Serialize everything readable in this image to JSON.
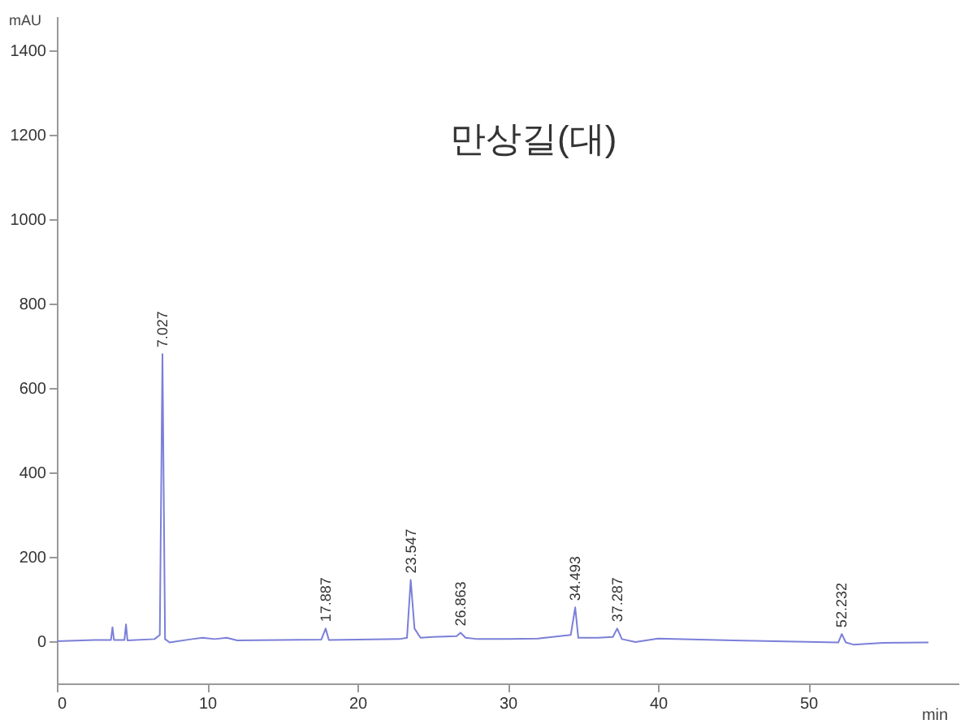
{
  "chart_data": {
    "type": "line",
    "title": "만상길(대)",
    "xlabel": "min",
    "ylabel": "mAU",
    "x": [
      0,
      2.5,
      3.6,
      3.7,
      3.8,
      4.5,
      4.6,
      4.7,
      6.5,
      6.85,
      7.027,
      7.2,
      7.5,
      9,
      9.7,
      10.5,
      11.3,
      12,
      17.6,
      17.887,
      18.1,
      20,
      22.8,
      23.3,
      23.547,
      23.8,
      24.2,
      25,
      26.6,
      26.863,
      27.2,
      28,
      30,
      32,
      34.2,
      34.493,
      34.7,
      36,
      37,
      37.287,
      37.6,
      38.5,
      40,
      45,
      52,
      52.232,
      52.5,
      53,
      55,
      58
    ],
    "series": [
      {
        "color": "#7b7fd8",
        "values": [
          0,
          3,
          3,
          33,
          3,
          3,
          40,
          2,
          5,
          15,
          680,
          5,
          -3,
          5,
          8,
          5,
          8,
          2,
          4,
          30,
          3,
          4,
          5,
          8,
          145,
          30,
          8,
          10,
          12,
          20,
          8,
          5,
          5,
          6,
          15,
          80,
          8,
          8,
          10,
          30,
          5,
          -2,
          6,
          2,
          -3,
          17,
          -3,
          -8,
          -4,
          -3
        ]
      }
    ],
    "xlim": [
      0,
      60
    ],
    "xticks": [
      0,
      10,
      20,
      30,
      40,
      50
    ],
    "ylim": [
      -100,
      1480
    ],
    "yticks": [
      0,
      200,
      400,
      600,
      800,
      1000,
      1200,
      1400
    ],
    "grid": false,
    "marker": "none",
    "line_style": "solid",
    "annotations": [
      {
        "text": "7.027",
        "x": 7.027,
        "y": 680
      },
      {
        "text": "17.887",
        "x": 17.887,
        "y": 30
      },
      {
        "text": "23.547",
        "x": 23.547,
        "y": 145
      },
      {
        "text": "26.863",
        "x": 26.863,
        "y": 20
      },
      {
        "text": "34.493",
        "x": 34.493,
        "y": 80
      },
      {
        "text": "37.287",
        "x": 37.287,
        "y": 30
      },
      {
        "text": "52.232",
        "x": 52.232,
        "y": 17
      }
    ]
  }
}
